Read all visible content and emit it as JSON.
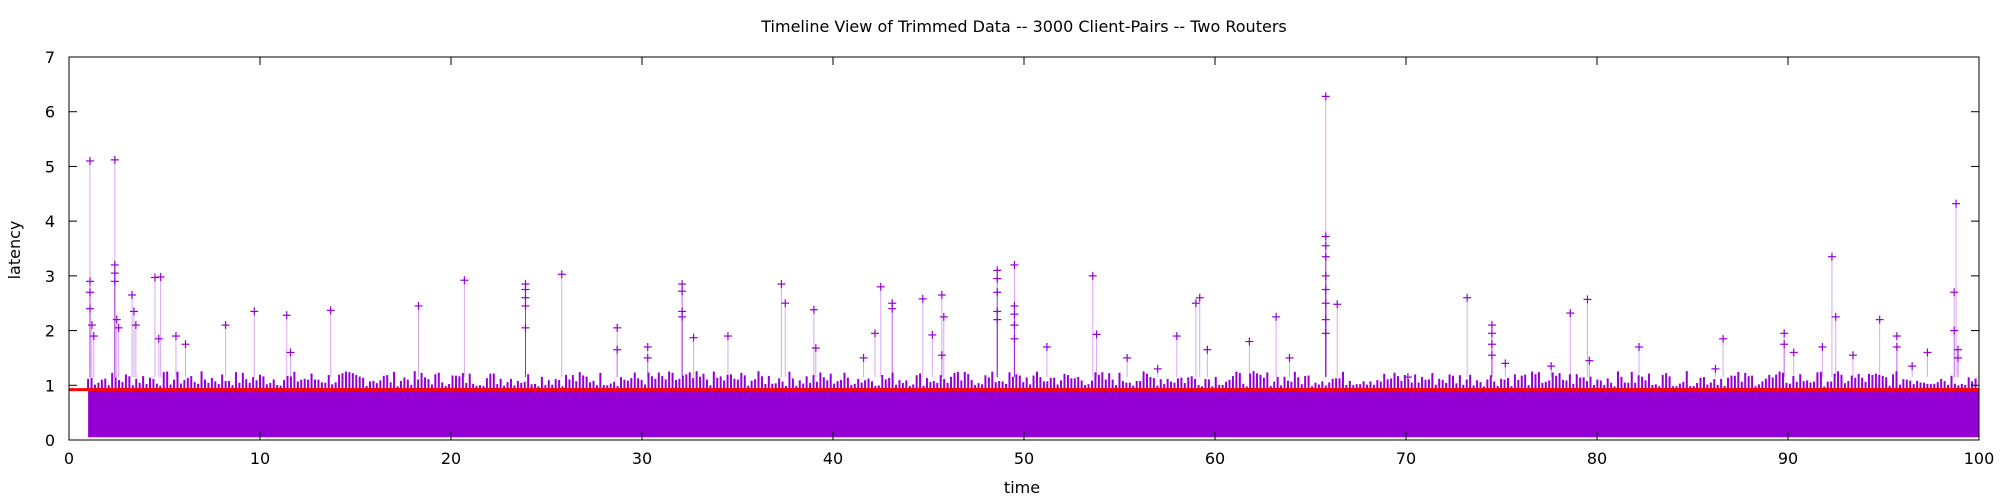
{
  "chart_data": {
    "type": "scatter",
    "title": "Timeline View of Trimmed Data -- 3000 Client-Pairs -- Two Routers",
    "xlabel": "time",
    "ylabel": "latency",
    "xlim": [
      0,
      100
    ],
    "ylim": [
      0,
      7
    ],
    "x_ticks": [
      "0",
      "10",
      "20",
      "30",
      "40",
      "50",
      "60",
      "70",
      "80",
      "90",
      "100"
    ],
    "y_ticks": [
      "0",
      "1",
      "2",
      "3",
      "4",
      "5",
      "6",
      "7"
    ],
    "grid": false,
    "legend": "none",
    "colors": {
      "points": "#9400d3",
      "reference_line": "#ff0000"
    },
    "reference_line": {
      "y": 0.92
    },
    "dense_band": {
      "x_start": 1,
      "x_end": 100,
      "y_min": 0.05,
      "y_max": 0.95
    },
    "series": [
      {
        "marker": "plus",
        "points": [
          [
            1.1,
            5.1
          ],
          [
            2.4,
            5.12
          ],
          [
            65.8,
            6.28
          ],
          [
            98.8,
            4.32
          ],
          [
            92.3,
            3.35
          ],
          [
            1.1,
            2.9
          ],
          [
            1.1,
            2.7
          ],
          [
            1.1,
            2.4
          ],
          [
            1.2,
            2.1
          ],
          [
            1.3,
            1.9
          ],
          [
            2.4,
            3.2
          ],
          [
            2.4,
            3.05
          ],
          [
            2.4,
            2.9
          ],
          [
            2.5,
            2.2
          ],
          [
            2.6,
            2.05
          ],
          [
            3.3,
            2.65
          ],
          [
            3.4,
            2.35
          ],
          [
            3.5,
            2.1
          ],
          [
            4.5,
            2.97
          ],
          [
            4.8,
            2.98
          ],
          [
            4.7,
            1.85
          ],
          [
            5.6,
            1.9
          ],
          [
            6.1,
            1.75
          ],
          [
            8.2,
            2.1
          ],
          [
            9.7,
            2.35
          ],
          [
            11.4,
            2.28
          ],
          [
            11.6,
            1.6
          ],
          [
            13.7,
            2.37
          ],
          [
            18.3,
            2.45
          ],
          [
            20.7,
            2.92
          ],
          [
            23.9,
            2.85
          ],
          [
            23.9,
            2.75
          ],
          [
            23.9,
            2.6
          ],
          [
            23.9,
            2.45
          ],
          [
            23.9,
            2.05
          ],
          [
            25.8,
            3.03
          ],
          [
            28.7,
            2.05
          ],
          [
            28.7,
            1.65
          ],
          [
            30.3,
            1.7
          ],
          [
            30.3,
            1.5
          ],
          [
            32.1,
            2.85
          ],
          [
            32.1,
            2.72
          ],
          [
            32.1,
            2.35
          ],
          [
            32.1,
            2.25
          ],
          [
            32.7,
            1.87
          ],
          [
            34.5,
            1.9
          ],
          [
            37.3,
            2.85
          ],
          [
            37.5,
            2.5
          ],
          [
            39.0,
            2.38
          ],
          [
            39.1,
            1.68
          ],
          [
            41.6,
            1.5
          ],
          [
            42.2,
            1.95
          ],
          [
            42.5,
            2.8
          ],
          [
            43.1,
            2.5
          ],
          [
            43.1,
            2.4
          ],
          [
            44.7,
            2.58
          ],
          [
            45.2,
            1.92
          ],
          [
            45.7,
            2.65
          ],
          [
            45.8,
            2.25
          ],
          [
            45.7,
            1.55
          ],
          [
            48.6,
            3.1
          ],
          [
            48.6,
            2.95
          ],
          [
            48.6,
            2.7
          ],
          [
            48.6,
            2.35
          ],
          [
            48.6,
            2.2
          ],
          [
            49.5,
            3.2
          ],
          [
            49.5,
            2.45
          ],
          [
            49.5,
            2.3
          ],
          [
            49.5,
            2.1
          ],
          [
            49.5,
            1.85
          ],
          [
            51.2,
            1.7
          ],
          [
            53.6,
            3.0
          ],
          [
            53.8,
            1.93
          ],
          [
            55.4,
            1.5
          ],
          [
            57.0,
            1.3
          ],
          [
            58.0,
            1.9
          ],
          [
            59.0,
            2.5
          ],
          [
            59.2,
            2.6
          ],
          [
            59.6,
            1.65
          ],
          [
            61.8,
            1.8
          ],
          [
            63.2,
            2.25
          ],
          [
            63.9,
            1.5
          ],
          [
            65.8,
            3.72
          ],
          [
            65.8,
            3.55
          ],
          [
            65.8,
            3.35
          ],
          [
            65.8,
            3.0
          ],
          [
            65.8,
            2.75
          ],
          [
            65.8,
            2.5
          ],
          [
            65.8,
            2.2
          ],
          [
            65.8,
            1.95
          ],
          [
            66.4,
            2.48
          ],
          [
            73.2,
            2.6
          ],
          [
            74.5,
            2.1
          ],
          [
            74.5,
            1.95
          ],
          [
            74.5,
            1.75
          ],
          [
            74.5,
            1.55
          ],
          [
            75.2,
            1.4
          ],
          [
            78.6,
            2.32
          ],
          [
            79.5,
            2.57
          ],
          [
            79.6,
            1.45
          ],
          [
            82.2,
            1.7
          ],
          [
            86.6,
            1.85
          ],
          [
            89.8,
            1.95
          ],
          [
            89.8,
            1.75
          ],
          [
            90.3,
            1.6
          ],
          [
            91.8,
            1.7
          ],
          [
            92.5,
            2.25
          ],
          [
            93.4,
            1.55
          ],
          [
            94.8,
            2.2
          ],
          [
            95.7,
            1.9
          ],
          [
            95.7,
            1.7
          ],
          [
            97.3,
            1.6
          ],
          [
            98.7,
            2.7
          ],
          [
            98.7,
            2.0
          ],
          [
            98.9,
            1.65
          ],
          [
            98.9,
            1.5
          ],
          [
            96.5,
            1.35
          ],
          [
            86.2,
            1.3
          ],
          [
            77.6,
            1.35
          ],
          [
            70.1,
            1.15
          ]
        ]
      }
    ]
  }
}
